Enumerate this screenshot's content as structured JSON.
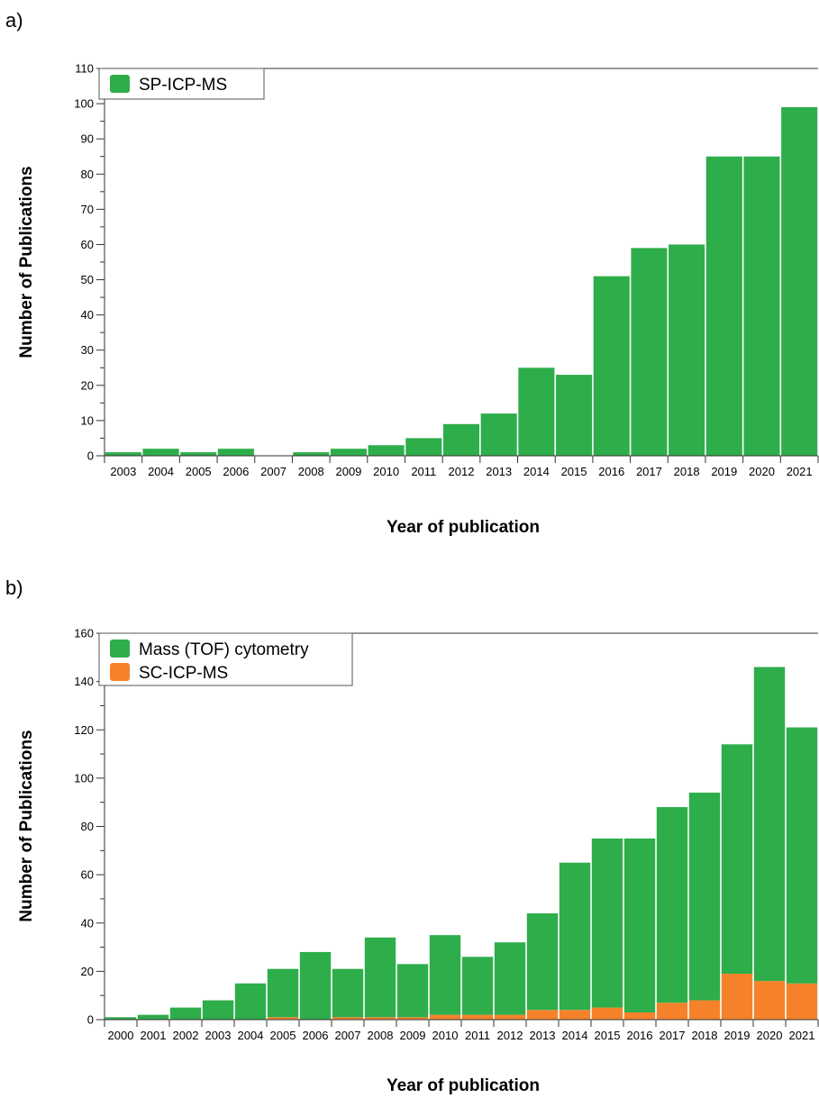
{
  "panels": {
    "a": {
      "label": "a)"
    },
    "b": {
      "label": "b)"
    }
  },
  "colors": {
    "green": "#2EAD4B",
    "orange": "#F5822A"
  },
  "chart_data": [
    {
      "type": "bar",
      "title": "",
      "xlabel": "Year of publication",
      "ylabel": "Number of Publications",
      "ylim": [
        0,
        110
      ],
      "yticks": [
        0,
        10,
        20,
        30,
        40,
        50,
        60,
        70,
        80,
        90,
        100,
        110
      ],
      "legend": "top-left",
      "categories": [
        "2003",
        "2004",
        "2005",
        "2006",
        "2007",
        "2008",
        "2009",
        "2010",
        "2011",
        "2012",
        "2013",
        "2014",
        "2015",
        "2016",
        "2017",
        "2018",
        "2019",
        "2020",
        "2021"
      ],
      "series": [
        {
          "name": "SP-ICP-MS",
          "color": "#2EAD4B",
          "values": [
            1,
            2,
            1,
            2,
            0,
            1,
            2,
            3,
            5,
            9,
            12,
            25,
            23,
            51,
            59,
            60,
            85,
            85,
            99
          ]
        }
      ]
    },
    {
      "type": "bar",
      "stacked": true,
      "title": "",
      "xlabel": "Year of publication",
      "ylabel": "Number of Publications",
      "ylim": [
        0,
        160
      ],
      "yticks": [
        0,
        20,
        40,
        60,
        80,
        100,
        120,
        140,
        160
      ],
      "legend": "top-left",
      "categories": [
        "2000",
        "2001",
        "2002",
        "2003",
        "2004",
        "2005",
        "2006",
        "2007",
        "2008",
        "2009",
        "2010",
        "2011",
        "2012",
        "2013",
        "2014",
        "2015",
        "2016",
        "2017",
        "2018",
        "2019",
        "2020",
        "2021"
      ],
      "series": [
        {
          "name": "Mass (TOF) cytometry",
          "color": "#2EAD4B",
          "values": [
            1,
            2,
            5,
            8,
            15,
            20,
            28,
            20,
            33,
            22,
            33,
            24,
            30,
            40,
            61,
            70,
            72,
            81,
            86,
            95,
            130,
            106
          ]
        },
        {
          "name": "SC-ICP-MS",
          "color": "#F5822A",
          "values": [
            0,
            0,
            0,
            0,
            0,
            1,
            0,
            1,
            1,
            1,
            2,
            2,
            2,
            4,
            4,
            5,
            3,
            7,
            8,
            19,
            16,
            15
          ]
        }
      ]
    }
  ]
}
